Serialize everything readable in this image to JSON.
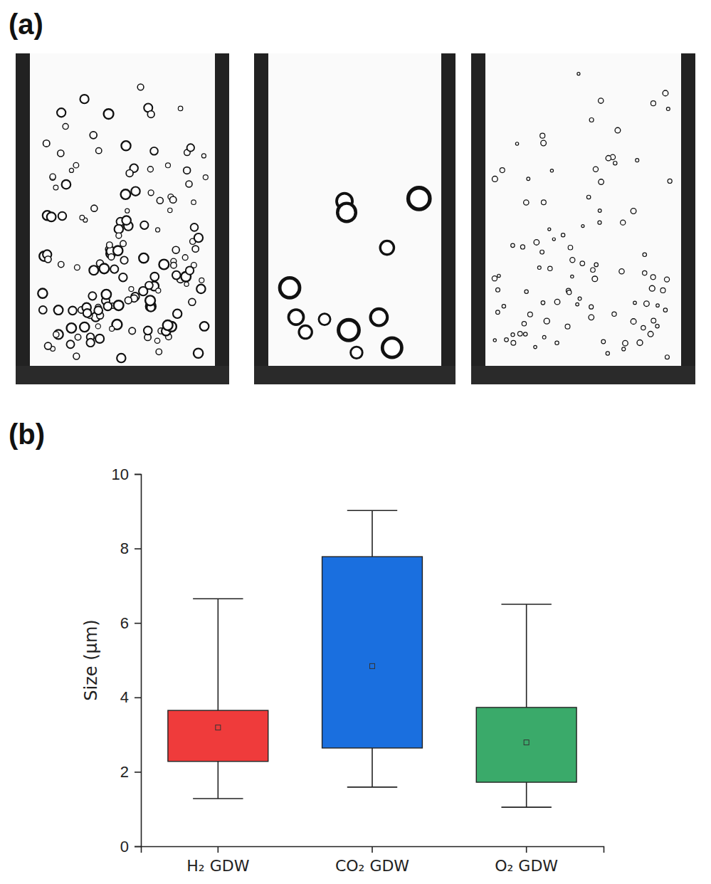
{
  "panels": {
    "a": {
      "label": "(a)"
    },
    "b": {
      "label": "(b)"
    }
  },
  "chart_data": {
    "type": "box",
    "y_label": "Size (μm)",
    "categories": [
      "H₂ GDW",
      "CO₂ GDW",
      "O₂ GDW"
    ],
    "boxes": [
      {
        "low": 1.28,
        "q1": 2.28,
        "q3": 3.65,
        "high": 6.65,
        "mean": 3.19
      },
      {
        "low": 1.59,
        "q1": 2.64,
        "q3": 7.78,
        "high": 9.02,
        "mean": 4.84
      },
      {
        "low": 1.05,
        "q1": 1.72,
        "q3": 3.73,
        "high": 6.5,
        "mean": 2.79
      }
    ],
    "colors": [
      "#ef3b3b",
      "#1a6fdf",
      "#3aaa6a"
    ],
    "ylim": [
      0,
      10
    ],
    "yticks": [
      0,
      2,
      4,
      6,
      8,
      10
    ],
    "grid": false
  }
}
